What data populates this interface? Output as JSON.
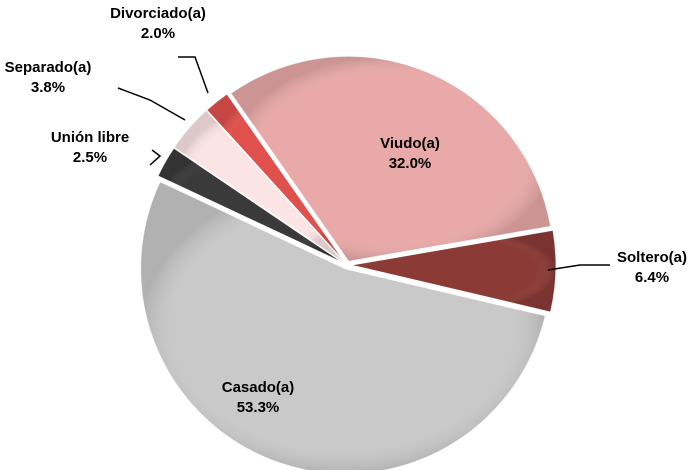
{
  "chart_data": {
    "type": "pie",
    "categories": [
      "Viudo(a)",
      "Soltero(a)",
      "Casado(a)",
      "Unión libre",
      "Separado(a)",
      "Divorciado(a)"
    ],
    "values": [
      32.0,
      6.4,
      53.3,
      2.5,
      3.8,
      2.0
    ],
    "value_labels": [
      "32.0%",
      "6.4%",
      "53.3%",
      "2.5%",
      "3.8%",
      "2.0%"
    ],
    "colors": [
      "#e8a9a8",
      "#8b3a36",
      "#c9c9c9",
      "#3a3a3a",
      "#fbe4e4",
      "#e0504c"
    ]
  }
}
